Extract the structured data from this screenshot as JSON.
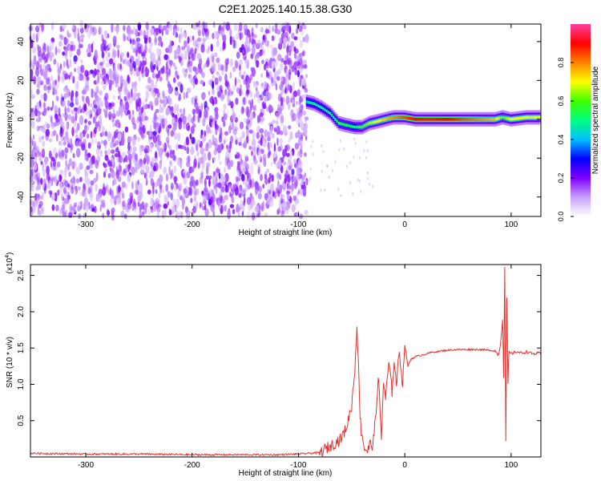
{
  "title": "C2E1.2025.140.15.38.G30",
  "chart_data": [
    {
      "type": "heatmap",
      "xlabel": "Height of straight line (km)",
      "ylabel": "Frequency (Hz)",
      "xlim": [
        -352,
        128
      ],
      "ylim": [
        -50,
        49
      ],
      "x_ticks": [
        -300,
        -200,
        -100,
        0,
        100
      ],
      "x_tick_labels": [
        "-300",
        "-200",
        "-100",
        "0",
        "100"
      ],
      "y_ticks": [
        -40,
        -20,
        0,
        20,
        40
      ],
      "y_tick_labels": [
        "-40",
        "-20",
        "0",
        "20",
        "40"
      ],
      "grid": false,
      "colorbar": {
        "label": "Normalized spectral amplitude",
        "range": [
          0,
          1
        ],
        "ticks": [
          0.0,
          0.2,
          0.4,
          0.6,
          0.8
        ],
        "tick_labels": [
          "0.0",
          "0.2",
          "0.4",
          "0.6",
          "0.8"
        ],
        "colors": [
          "#ffffff",
          "#c8a0ff",
          "#8000ff",
          "#0000ff",
          "#00c0ff",
          "#00ff80",
          "#40ff00",
          "#ffff00",
          "#ff8000",
          "#ff0000",
          "#ff40a0"
        ]
      },
      "noise_region": {
        "x": [
          -352,
          -92
        ],
        "freq": [
          -50,
          49
        ],
        "amplitude": [
          0.05,
          0.2
        ]
      },
      "ridge": [
        {
          "x": -92,
          "freq": 9,
          "amp": 0.45
        },
        {
          "x": -85,
          "freq": 8,
          "amp": 0.5
        },
        {
          "x": -78,
          "freq": 6,
          "amp": 0.5
        },
        {
          "x": -70,
          "freq": 3,
          "amp": 0.5
        },
        {
          "x": -62,
          "freq": -2,
          "amp": 0.55
        },
        {
          "x": -55,
          "freq": -3,
          "amp": 0.55
        },
        {
          "x": -47,
          "freq": -4,
          "amp": 0.5
        },
        {
          "x": -40,
          "freq": -4,
          "amp": 0.6
        },
        {
          "x": -33,
          "freq": -2,
          "amp": 0.65
        },
        {
          "x": -25,
          "freq": -1,
          "amp": 0.7
        },
        {
          "x": -18,
          "freq": 0,
          "amp": 0.75
        },
        {
          "x": -10,
          "freq": 1,
          "amp": 0.8
        },
        {
          "x": 0,
          "freq": 1,
          "amp": 0.85
        },
        {
          "x": 10,
          "freq": 0,
          "amp": 0.9
        },
        {
          "x": 25,
          "freq": 0,
          "amp": 0.92
        },
        {
          "x": 40,
          "freq": 0,
          "amp": 0.9
        },
        {
          "x": 55,
          "freq": 0,
          "amp": 0.85
        },
        {
          "x": 70,
          "freq": 0,
          "amp": 0.8
        },
        {
          "x": 85,
          "freq": 0,
          "amp": 0.75
        },
        {
          "x": 92,
          "freq": 1,
          "amp": 0.6
        },
        {
          "x": 100,
          "freq": 0,
          "amp": 0.7
        },
        {
          "x": 115,
          "freq": 1,
          "amp": 0.7
        },
        {
          "x": 128,
          "freq": 1,
          "amp": 0.7
        }
      ]
    },
    {
      "type": "line",
      "xlabel": "Height of straight line (km)",
      "ylabel": "SNR (10 * v/v)",
      "y_multiplier": "(x10",
      "y_multiplier_exp": "4",
      "xlim": [
        -352,
        128
      ],
      "ylim": [
        0,
        2.65
      ],
      "x_ticks": [
        -300,
        -200,
        -100,
        0,
        100
      ],
      "x_tick_labels": [
        "-300",
        "-200",
        "-100",
        "0",
        "100"
      ],
      "y_ticks": [
        0.5,
        1.0,
        1.5,
        2.0,
        2.5
      ],
      "y_tick_labels": [
        "0.5",
        "1.0",
        "1.5",
        "2.0",
        "2.5"
      ],
      "grid": false,
      "series": [
        {
          "color": "#e8312e",
          "x": [
            -352,
            -300,
            -250,
            -200,
            -150,
            -120,
            -100,
            -80,
            -70,
            -60,
            -55,
            -50,
            -47,
            -45,
            -43,
            -42,
            -41,
            -40,
            -38,
            -35,
            -32,
            -30,
            -27,
            -25,
            -22,
            -20,
            -18,
            -15,
            -12,
            -10,
            -8,
            -5,
            -2,
            0,
            3,
            6,
            10,
            15,
            20,
            25,
            30,
            35,
            40,
            50,
            60,
            70,
            80,
            85,
            88,
            90,
            92,
            93,
            94,
            95,
            96,
            97,
            98,
            100,
            105,
            110,
            115,
            120,
            128
          ],
          "y": [
            0.05,
            0.04,
            0.04,
            0.03,
            0.03,
            0.03,
            0.04,
            0.06,
            0.15,
            0.25,
            0.4,
            0.7,
            1.2,
            1.85,
            1.0,
            0.6,
            0.35,
            0.3,
            0.12,
            0.08,
            0.2,
            0.15,
            0.6,
            1.15,
            0.25,
            1.05,
            0.8,
            1.3,
            0.9,
            1.35,
            1.0,
            1.45,
            1.0,
            1.55,
            1.25,
            1.35,
            1.38,
            1.4,
            1.42,
            1.44,
            1.45,
            1.46,
            1.47,
            1.48,
            1.48,
            1.48,
            1.47,
            1.46,
            1.4,
            1.55,
            1.9,
            1.1,
            2.62,
            0.2,
            2.2,
            1.0,
            1.45,
            1.42,
            1.45,
            1.43,
            1.45,
            1.42,
            1.43
          ]
        }
      ]
    }
  ]
}
